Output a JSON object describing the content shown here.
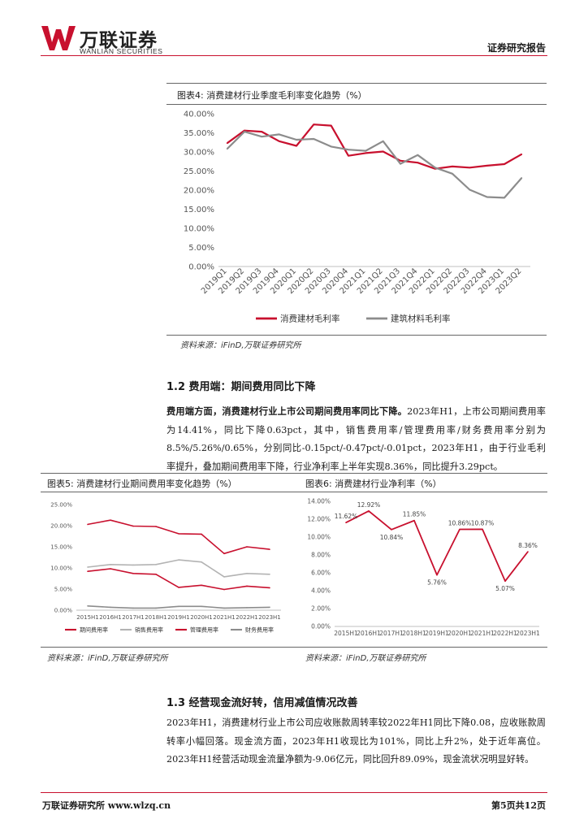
{
  "header": {
    "logo_cn": "万联证券",
    "logo_en": "WANLIAN SECURITIES",
    "report_type": "证券研究报告",
    "brand_color": "#c8102e"
  },
  "fig4": {
    "title": "图表4:  消费建材行业季度毛利率变化趋势（%）",
    "source": "资料来源：iFinD,万联证券研究所"
  },
  "section_1_2": {
    "heading": "1.2  费用端：期间费用同比下降",
    "lead": "费用端方面，消费建材行业上市公司期间费用率同比下降。",
    "body": "2023年H1，上市公司期间费用率为14.41%，同比下降0.63pct，其中，销售费用率/管理费用率/财务费用率分别为8.5%/5.26%/0.65%，分别同比-0.15pct/-0.47pct/-0.01pct，2023年H1，由于行业毛利率提升，叠加期间费用率下降，行业净利率上半年实现8.36%，同比提升3.29pct。"
  },
  "fig5": {
    "title": "图表5:  消费建材行业期间费用率变化趋势（%）",
    "source": "资料来源：iFinD,万联证券研究所"
  },
  "fig6": {
    "title": "图表6:  消费建材行业净利率（%）",
    "source": "资料来源：iFinD,万联证券研究所"
  },
  "section_1_3": {
    "heading": "1.3  经营现金流好转，信用减值情况改善",
    "body": "2023年H1，消费建材行业上市公司应收账款周转率较2022年H1同比下降0.08，应收账款周转率小幅回落。现金流方面，2023年H1收现比为101%，同比上升2%，处于近年高位。2023年H1经营活动现金流量净额为-9.06亿元，同比回升89.09%，现金流状况明显好转。"
  },
  "footer": {
    "left": "万联证券研究所  www.wlzq.cn",
    "right": "第5页共12页"
  },
  "chart_data": [
    {
      "type": "line",
      "title": "消费建材行业季度毛利率变化趋势（%）",
      "x": [
        "2019Q1",
        "2019Q2",
        "2019Q3",
        "2019Q4",
        "2020Q1",
        "2020Q2",
        "2020Q3",
        "2020Q4",
        "2021Q1",
        "2021Q2",
        "2021Q3",
        "2021Q4",
        "2022Q1",
        "2022Q2",
        "2022Q3",
        "2022Q4",
        "2023Q1",
        "2023Q2"
      ],
      "ylim": [
        0,
        40
      ],
      "yticks": [
        "0.00%",
        "5.00%",
        "10.00%",
        "15.00%",
        "20.00%",
        "25.00%",
        "30.00%",
        "35.00%",
        "40.00%"
      ],
      "legend_position": "bottom",
      "series": [
        {
          "name": "消费建材毛利率",
          "color": "#c8102e",
          "values": [
            32.3,
            35.6,
            35.3,
            32.8,
            31.6,
            37.2,
            36.9,
            29.0,
            29.7,
            30.1,
            27.7,
            27.2,
            25.6,
            26.2,
            25.9,
            26.4,
            26.8,
            29.4
          ]
        },
        {
          "name": "建筑材料毛利率",
          "color": "#8c8c8c",
          "values": [
            30.8,
            35.3,
            34.0,
            34.6,
            33.2,
            33.4,
            31.4,
            30.6,
            30.3,
            32.8,
            26.9,
            29.2,
            25.9,
            24.3,
            20.1,
            18.2,
            18.0,
            23.2
          ]
        }
      ]
    },
    {
      "type": "line",
      "title": "消费建材行业期间费用率变化趋势（%）",
      "x": [
        "2015H1",
        "2016H1",
        "2017H1",
        "2018H1",
        "2019H1",
        "2020H1",
        "2021H1",
        "2022H1",
        "2023H1"
      ],
      "ylim": [
        0,
        25
      ],
      "yticks": [
        "0.00%",
        "5.00%",
        "10.00%",
        "15.00%",
        "20.00%",
        "25.00%"
      ],
      "legend_position": "bottom",
      "series": [
        {
          "name": "期间费用率",
          "color": "#c8102e",
          "values": [
            20.3,
            21.3,
            19.9,
            19.8,
            18.1,
            18.0,
            13.4,
            15.0,
            14.4
          ]
        },
        {
          "name": "销售费用率",
          "color": "#b3b3b3",
          "values": [
            10.2,
            10.8,
            10.7,
            10.8,
            11.9,
            11.4,
            7.9,
            8.7,
            8.5
          ]
        },
        {
          "name": "管理费用率",
          "color": "#c8102e",
          "values": [
            9.2,
            9.8,
            8.7,
            8.5,
            5.4,
            5.9,
            4.9,
            5.7,
            5.3
          ]
        },
        {
          "name": "财务费用率",
          "color": "#8c8c8c",
          "values": [
            1.0,
            0.7,
            0.5,
            0.5,
            0.9,
            0.9,
            0.5,
            0.6,
            0.7
          ]
        }
      ]
    },
    {
      "type": "line",
      "title": "消费建材行业净利率（%）",
      "x": [
        "2015H1",
        "2016H1",
        "2017H1",
        "2018H1",
        "2019H1",
        "2020H1",
        "2021H1",
        "2022H1",
        "2023H1"
      ],
      "ylim": [
        0,
        14
      ],
      "yticks": [
        "0.00%",
        "2.00%",
        "4.00%",
        "6.00%",
        "8.00%",
        "10.00%",
        "12.00%",
        "14.00%"
      ],
      "series": [
        {
          "name": "净利率",
          "color": "#c8102e",
          "values": [
            11.62,
            12.92,
            10.84,
            11.85,
            5.76,
            10.86,
            10.87,
            5.07,
            8.36
          ],
          "labels": [
            "11.62%",
            "12.92%",
            "10.84%",
            "11.85%",
            "5.76%",
            "10.86%",
            "10.87%",
            "5.07%",
            "8.36%"
          ]
        }
      ]
    }
  ]
}
